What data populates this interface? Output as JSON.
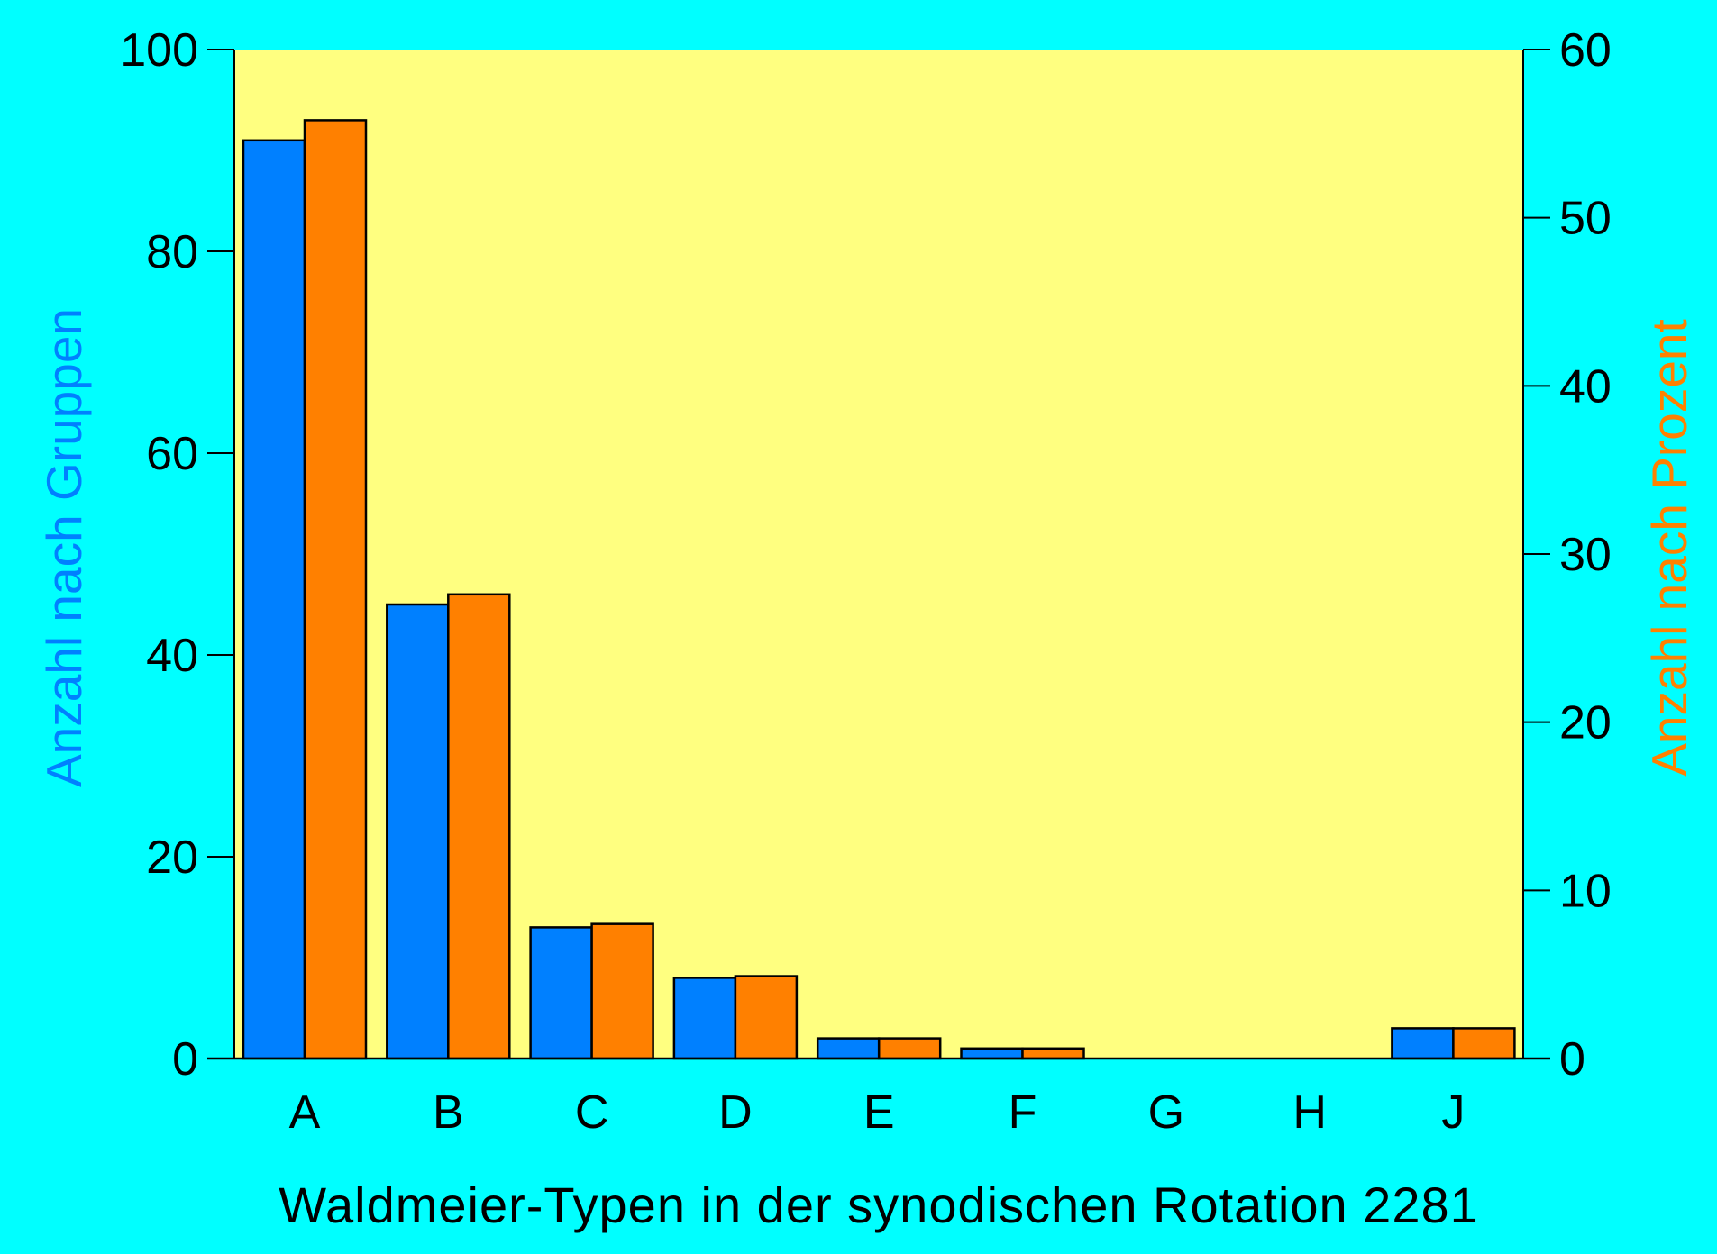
{
  "colors": {
    "background": "#00ffff",
    "plot_background": "#ffff80",
    "series_groups": "#0080ff",
    "series_percent": "#ff8000",
    "axis": "#000000"
  },
  "chart_data": {
    "type": "bar",
    "categories": [
      "A",
      "B",
      "C",
      "D",
      "E",
      "F",
      "G",
      "H",
      "J"
    ],
    "xlabel": "Waldmeier-Typen in der synodischen Rotation 2281",
    "ylabel_left": "Anzahl nach Gruppen",
    "ylabel_right": "Anzahl nach Prozent",
    "ylim_left": [
      0,
      100
    ],
    "ylim_right": [
      0,
      60
    ],
    "yticks_left": [
      "0",
      "20",
      "40",
      "60",
      "80",
      "100"
    ],
    "yticks_right": [
      "0",
      "10",
      "20",
      "30",
      "40",
      "50",
      "60"
    ],
    "grid": false,
    "series": [
      {
        "axis": "left",
        "color": "#0080ff",
        "values": [
          91,
          45,
          13,
          8,
          2,
          1,
          0,
          0,
          3
        ]
      },
      {
        "axis": "right",
        "color": "#ff8000",
        "values": [
          55.8,
          27.6,
          8.0,
          4.9,
          1.2,
          0.6,
          0,
          0,
          1.8
        ]
      }
    ]
  }
}
